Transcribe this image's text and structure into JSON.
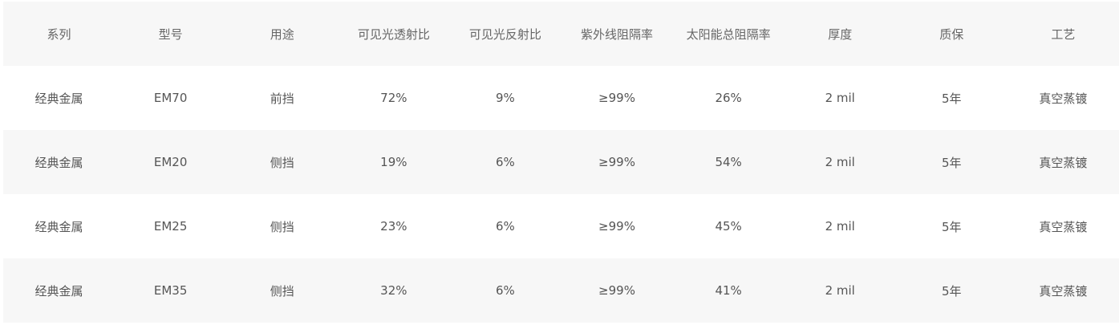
{
  "table": {
    "headers": [
      "系列",
      "型号",
      "用途",
      "可见光透射比",
      "可见光反射比",
      "紫外线阻隔率",
      "太阳能总阻隔率",
      "厚度",
      "质保",
      "工艺"
    ],
    "rows": [
      [
        "经典金属",
        "EM70",
        "前挡",
        "72%",
        "9%",
        "≥99%",
        "26%",
        "2 mil",
        "5年",
        "真空蒸镀"
      ],
      [
        "经典金属",
        "EM20",
        "侧挡",
        "19%",
        "6%",
        "≥99%",
        "54%",
        "2 mil",
        "5年",
        "真空蒸镀"
      ],
      [
        "经典金属",
        "EM25",
        "侧挡",
        "23%",
        "6%",
        "≥99%",
        "45%",
        "2 mil",
        "5年",
        "真空蒸镀"
      ],
      [
        "经典金属",
        "EM35",
        "侧挡",
        "32%",
        "6%",
        "≥99%",
        "41%",
        "2 mil",
        "5年",
        "真空蒸镀"
      ]
    ]
  },
  "colors": {
    "stripe": "#f7f7f7",
    "background": "#ffffff",
    "text": "#555555"
  }
}
